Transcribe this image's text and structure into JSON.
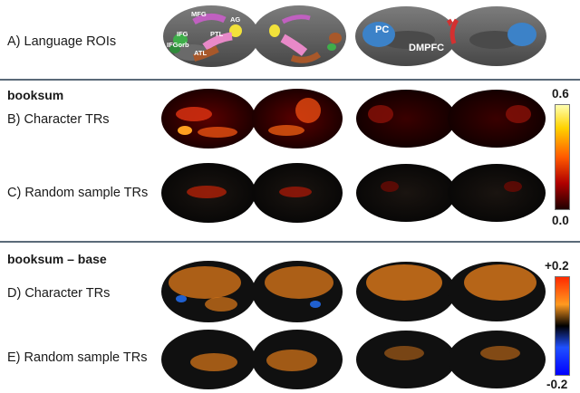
{
  "panels": {
    "a_label": "A) Language ROIs",
    "section1_title": "booksum",
    "b_label": "B) Character TRs",
    "c_label": "C) Random sample TRs",
    "section2_title": "booksum – base",
    "d_label": "D) Character TRs",
    "e_label": "E) Random sample TRs"
  },
  "rois": {
    "mfg": "MFG",
    "ag": "AG",
    "ifg": "IFG",
    "ifgorb": "IFGorb",
    "ptl": "PTL",
    "atl": "ATL",
    "pc": "PC",
    "dmpfc": "DMPFC"
  },
  "colorbar1": {
    "max": "0.6",
    "min": "0.0",
    "colors": [
      "#ffffb0",
      "#ffd200",
      "#ff5a00",
      "#b00000",
      "#200000"
    ]
  },
  "colorbar2": {
    "max": "+0.2",
    "min": "-0.2",
    "colors": [
      "#ff2a00",
      "#ff9a20",
      "#000000",
      "#2050ff",
      "#0000ff"
    ]
  },
  "colors": {
    "brain": "#5c5c5c",
    "brain_light": "#7a7a7a",
    "mfg": "#c060c0",
    "ag": "#f2e23a",
    "ifg": "#3fae4a",
    "ifgorb": "#2e8b3a",
    "ptl": "#e889c8",
    "atl": "#a8582a",
    "pc": "#3c82c8",
    "dmpfc": "#d43030",
    "heat": "#2a0000",
    "orange": "#e07a1a"
  }
}
